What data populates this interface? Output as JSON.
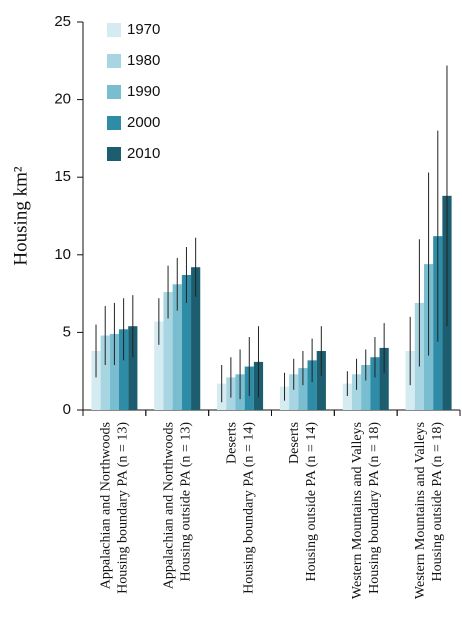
{
  "chart_data": {
    "type": "bar",
    "ylabel": "Housing km²",
    "categories": [
      [
        "Appalachian and Northwoods",
        "Housing boundary PA (n = 13)"
      ],
      [
        "Appalachian and Northwoods",
        "Housing outside PA (n = 13)"
      ],
      [
        "Deserts",
        "Housing boundary PA (n = 14)"
      ],
      [
        "Deserts",
        "Housing outside PA (n = 14)"
      ],
      [
        "Western Mountains and Valleys",
        "Housing boundary PA (n = 18)"
      ],
      [
        "Western Mountains and Valleys",
        "Housing outside PA (n = 18)"
      ]
    ],
    "series": [
      {
        "name": "1970",
        "color": "#d3ebf1",
        "values": [
          3.8,
          5.7,
          1.7,
          1.5,
          1.7,
          3.8
        ],
        "errors": [
          1.7,
          1.5,
          1.2,
          0.9,
          0.8,
          2.2
        ]
      },
      {
        "name": "1980",
        "color": "#a8d5e2",
        "values": [
          4.8,
          7.6,
          2.1,
          2.3,
          2.3,
          6.9
        ],
        "errors": [
          1.9,
          1.7,
          1.3,
          1.0,
          1.0,
          4.1
        ]
      },
      {
        "name": "1990",
        "color": "#79bdd0",
        "values": [
          4.9,
          8.1,
          2.3,
          2.7,
          2.9,
          9.4
        ],
        "errors": [
          2.0,
          1.7,
          1.6,
          1.1,
          1.0,
          5.9
        ]
      },
      {
        "name": "2000",
        "color": "#2f8ca6",
        "values": [
          5.2,
          8.7,
          2.8,
          3.2,
          3.4,
          11.2
        ],
        "errors": [
          2.0,
          1.8,
          1.9,
          1.4,
          1.3,
          6.8
        ]
      },
      {
        "name": "2010",
        "color": "#1c5d70",
        "values": [
          5.4,
          9.2,
          3.1,
          3.8,
          4.0,
          13.8
        ],
        "errors": [
          2.0,
          1.9,
          2.3,
          1.6,
          1.6,
          8.4
        ]
      }
    ],
    "ylim": [
      0,
      25
    ],
    "yticks": [
      0,
      5,
      10,
      15,
      20,
      25
    ],
    "legend": "upper left"
  }
}
